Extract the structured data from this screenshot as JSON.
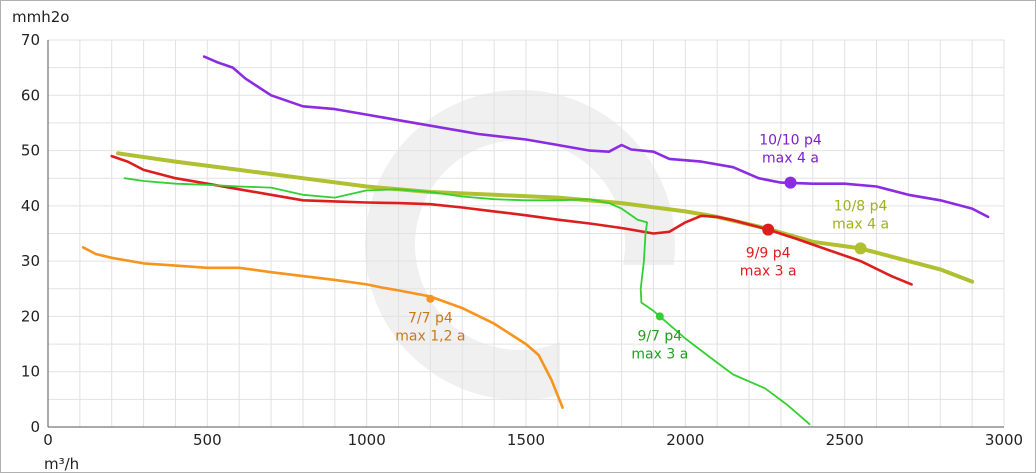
{
  "chart_data": {
    "type": "line",
    "title": "",
    "xlabel": "m³/h",
    "ylabel": "mmh2o",
    "xlim": [
      0,
      3000
    ],
    "ylim": [
      0,
      70
    ],
    "x_ticks": [
      "0",
      "500",
      "1000",
      "1500",
      "2000",
      "2500",
      "3000"
    ],
    "y_ticks": [
      "0",
      "10",
      "20",
      "30",
      "40",
      "50",
      "60",
      "70"
    ],
    "grid": true,
    "legend": "none",
    "series": [
      {
        "color": "#8b2be2",
        "points": [
          [
            490,
            67
          ],
          [
            530,
            66
          ],
          [
            580,
            65
          ],
          [
            620,
            63
          ],
          [
            700,
            60
          ],
          [
            800,
            58
          ],
          [
            900,
            57.5
          ],
          [
            1000,
            56.5
          ],
          [
            1100,
            55.5
          ],
          [
            1200,
            54.5
          ],
          [
            1300,
            53.5
          ],
          [
            1350,
            53
          ],
          [
            1500,
            52
          ],
          [
            1600,
            51
          ],
          [
            1700,
            50
          ],
          [
            1760,
            49.8
          ],
          [
            1800,
            51
          ],
          [
            1830,
            50.2
          ],
          [
            1900,
            49.8
          ],
          [
            1950,
            48.5
          ],
          [
            2050,
            48
          ],
          [
            2150,
            47
          ],
          [
            2230,
            45
          ],
          [
            2300,
            44.2
          ],
          [
            2400,
            44
          ],
          [
            2500,
            44
          ],
          [
            2600,
            43.5
          ],
          [
            2700,
            42
          ],
          [
            2800,
            41
          ],
          [
            2900,
            39.5
          ],
          [
            2950,
            38
          ]
        ]
      },
      {
        "color": "#b0c030",
        "points": [
          [
            220,
            49.5
          ],
          [
            400,
            48
          ],
          [
            600,
            46.5
          ],
          [
            800,
            45
          ],
          [
            1000,
            43.5
          ],
          [
            1200,
            42.5
          ],
          [
            1400,
            42
          ],
          [
            1600,
            41.5
          ],
          [
            1800,
            40.5
          ],
          [
            2000,
            39
          ],
          [
            2100,
            38
          ],
          [
            2250,
            36
          ],
          [
            2400,
            33.5
          ],
          [
            2550,
            32.3
          ],
          [
            2700,
            30
          ],
          [
            2800,
            28.5
          ],
          [
            2900,
            26.3
          ]
        ]
      },
      {
        "color": "#dd1e1e",
        "points": [
          [
            200,
            49
          ],
          [
            250,
            48
          ],
          [
            300,
            46.5
          ],
          [
            400,
            45
          ],
          [
            500,
            44
          ],
          [
            600,
            43
          ],
          [
            700,
            42
          ],
          [
            800,
            41
          ],
          [
            900,
            40.8
          ],
          [
            1000,
            40.6
          ],
          [
            1100,
            40.5
          ],
          [
            1200,
            40.3
          ],
          [
            1300,
            39.7
          ],
          [
            1400,
            39
          ],
          [
            1500,
            38.3
          ],
          [
            1600,
            37.5
          ],
          [
            1700,
            36.8
          ],
          [
            1800,
            36
          ],
          [
            1900,
            35
          ],
          [
            1950,
            35.3
          ],
          [
            2000,
            37
          ],
          [
            2050,
            38.2
          ],
          [
            2100,
            38
          ],
          [
            2150,
            37.4
          ],
          [
            2260,
            35.7
          ],
          [
            2350,
            34
          ],
          [
            2450,
            32
          ],
          [
            2550,
            30
          ],
          [
            2650,
            27.2
          ],
          [
            2710,
            25.8
          ]
        ]
      },
      {
        "color": "#33d033",
        "points": [
          [
            240,
            45
          ],
          [
            300,
            44.5
          ],
          [
            400,
            44
          ],
          [
            500,
            43.8
          ],
          [
            600,
            43.5
          ],
          [
            700,
            43.3
          ],
          [
            800,
            42
          ],
          [
            900,
            41.5
          ],
          [
            1000,
            42.8
          ],
          [
            1100,
            43
          ],
          [
            1200,
            42.5
          ],
          [
            1300,
            41.7
          ],
          [
            1400,
            41.2
          ],
          [
            1500,
            41
          ],
          [
            1600,
            41
          ],
          [
            1700,
            41.2
          ],
          [
            1760,
            40.5
          ],
          [
            1800,
            39.5
          ],
          [
            1850,
            37.5
          ],
          [
            1880,
            37
          ],
          [
            1875,
            35
          ],
          [
            1870,
            30
          ],
          [
            1860,
            25
          ],
          [
            1862,
            22.5
          ],
          [
            1900,
            21
          ],
          [
            1920,
            20
          ],
          [
            1950,
            18.5
          ],
          [
            2000,
            16
          ],
          [
            2080,
            12.5
          ],
          [
            2150,
            9.5
          ],
          [
            2250,
            7
          ],
          [
            2320,
            4
          ],
          [
            2390,
            0.5
          ]
        ]
      },
      {
        "color": "#f7941d",
        "points": [
          [
            110,
            32.5
          ],
          [
            150,
            31.3
          ],
          [
            200,
            30.6
          ],
          [
            300,
            29.6
          ],
          [
            400,
            29.2
          ],
          [
            500,
            28.8
          ],
          [
            600,
            28.8
          ],
          [
            700,
            28
          ],
          [
            800,
            27.3
          ],
          [
            900,
            26.6
          ],
          [
            1000,
            25.8
          ],
          [
            1050,
            25.2
          ],
          [
            1100,
            24.7
          ],
          [
            1200,
            23.6
          ],
          [
            1300,
            21.5
          ],
          [
            1400,
            18.7
          ],
          [
            1500,
            15
          ],
          [
            1540,
            13
          ],
          [
            1580,
            8.5
          ],
          [
            1615,
            3.5
          ]
        ]
      }
    ],
    "annotations": [
      {
        "series": 0,
        "label1": "10/10 p4",
        "label2": "max 4 a",
        "x": 2330,
        "y": 44.2
      },
      {
        "series": 1,
        "label1": "10/8 p4",
        "label2": "max 4 a",
        "x": 2550,
        "y": 32.3
      },
      {
        "series": 2,
        "label1": "9/9 p4",
        "label2": "max 3 a",
        "x": 2260,
        "y": 35.7
      },
      {
        "series": 3,
        "label1": "9/7 p4",
        "label2": "max 3 a",
        "x": 1920,
        "y": 20
      },
      {
        "series": 4,
        "label1": "7/7 p4",
        "label2": "max 1,2 a",
        "x": 1200,
        "y": 23.2
      }
    ]
  }
}
